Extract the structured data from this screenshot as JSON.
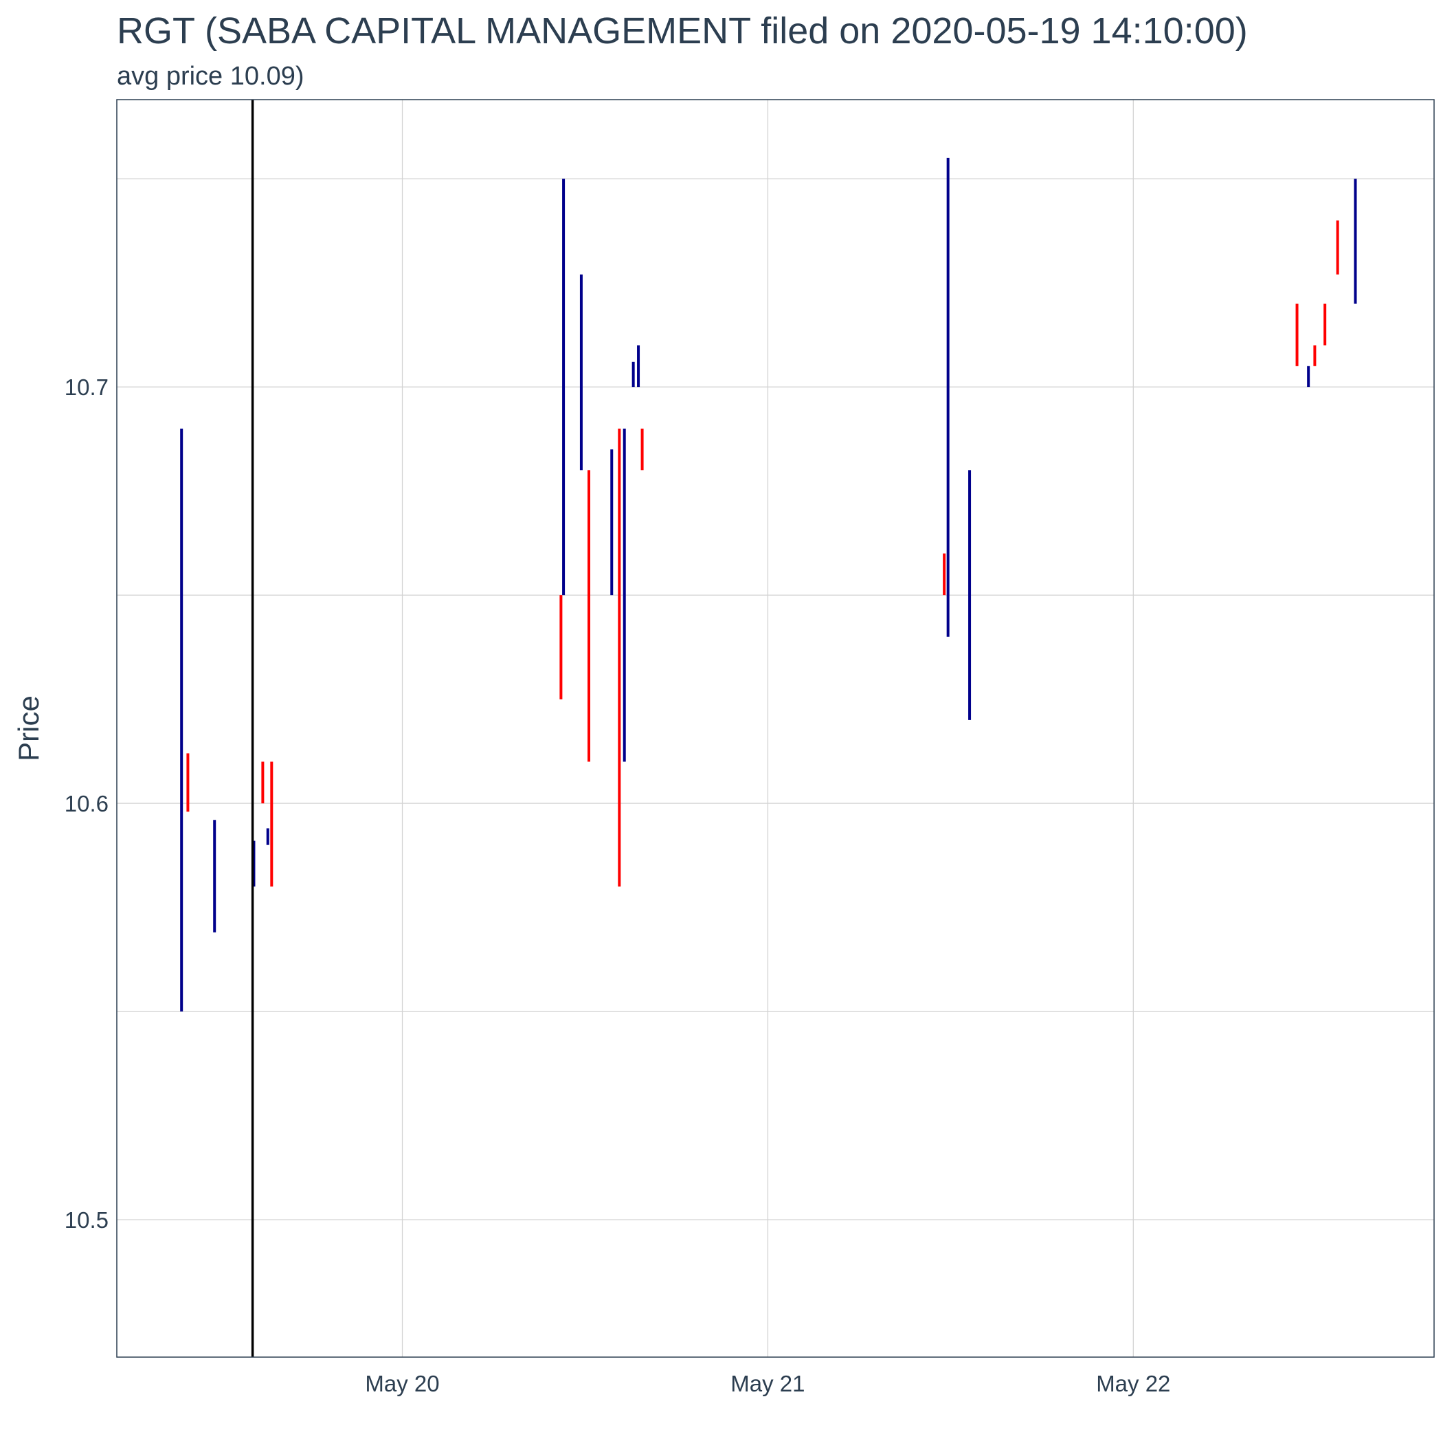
{
  "chart_data": {
    "type": "ohlc",
    "title": "RGT (SABA CAPITAL MANAGEMENT filed on 2020-05-19 14:10:00)",
    "subtitle": "avg price 10.09)",
    "ylabel": "Price",
    "xlabel": "",
    "x_ticks": [
      {
        "label": "May 20",
        "date": "2020-05-20T00:00"
      },
      {
        "label": "May 21",
        "date": "2020-05-21T00:00"
      },
      {
        "label": "May 22",
        "date": "2020-05-22T00:00"
      }
    ],
    "y_ticks": [
      10.5,
      10.6,
      10.7
    ],
    "xlim": [
      "2020-05-19T05:15",
      "2020-05-22T19:45"
    ],
    "ylim": [
      10.467,
      10.769
    ],
    "grid": true,
    "filing_marker": {
      "date": "2020-05-19T14:10",
      "color": "#000000"
    },
    "colors": {
      "up": "#00008b",
      "down": "#ff0000",
      "grid": "#d3d3d3",
      "text": "#2c3e50"
    },
    "bars": [
      {
        "t": "2020-05-19T09:30",
        "low": 10.55,
        "high": 10.69,
        "direction": "up"
      },
      {
        "t": "2020-05-19T09:55",
        "low": 10.598,
        "high": 10.612,
        "direction": "down"
      },
      {
        "t": "2020-05-19T11:40",
        "low": 10.569,
        "high": 10.596,
        "direction": "up"
      },
      {
        "t": "2020-05-19T14:15",
        "low": 10.58,
        "high": 10.591,
        "direction": "up"
      },
      {
        "t": "2020-05-19T14:50",
        "low": 10.6,
        "high": 10.61,
        "direction": "down"
      },
      {
        "t": "2020-05-19T15:10",
        "low": 10.59,
        "high": 10.594,
        "direction": "up"
      },
      {
        "t": "2020-05-19T15:25",
        "low": 10.58,
        "high": 10.61,
        "direction": "down"
      },
      {
        "t": "2020-05-20T10:25",
        "low": 10.625,
        "high": 10.65,
        "direction": "down"
      },
      {
        "t": "2020-05-20T10:35",
        "low": 10.65,
        "high": 10.75,
        "direction": "up"
      },
      {
        "t": "2020-05-20T11:45",
        "low": 10.68,
        "high": 10.727,
        "direction": "up"
      },
      {
        "t": "2020-05-20T12:15",
        "low": 10.61,
        "high": 10.68,
        "direction": "down"
      },
      {
        "t": "2020-05-20T13:45",
        "low": 10.65,
        "high": 10.685,
        "direction": "up"
      },
      {
        "t": "2020-05-20T14:15",
        "low": 10.58,
        "high": 10.69,
        "direction": "down"
      },
      {
        "t": "2020-05-20T14:35",
        "low": 10.61,
        "high": 10.69,
        "direction": "up"
      },
      {
        "t": "2020-05-20T15:10",
        "low": 10.7,
        "high": 10.706,
        "direction": "up"
      },
      {
        "t": "2020-05-20T15:30",
        "low": 10.7,
        "high": 10.71,
        "direction": "up"
      },
      {
        "t": "2020-05-20T15:45",
        "low": 10.68,
        "high": 10.69,
        "direction": "down"
      },
      {
        "t": "2020-05-21T11:35",
        "low": 10.65,
        "high": 10.66,
        "direction": "down"
      },
      {
        "t": "2020-05-21T11:50",
        "low": 10.64,
        "high": 10.755,
        "direction": "up"
      },
      {
        "t": "2020-05-21T13:15",
        "low": 10.62,
        "high": 10.68,
        "direction": "up"
      },
      {
        "t": "2020-05-22T10:45",
        "low": 10.705,
        "high": 10.72,
        "direction": "down"
      },
      {
        "t": "2020-05-22T11:30",
        "low": 10.7,
        "high": 10.705,
        "direction": "up"
      },
      {
        "t": "2020-05-22T11:55",
        "low": 10.705,
        "high": 10.71,
        "direction": "down"
      },
      {
        "t": "2020-05-22T12:35",
        "low": 10.71,
        "high": 10.72,
        "direction": "down"
      },
      {
        "t": "2020-05-22T13:25",
        "low": 10.727,
        "high": 10.74,
        "direction": "down"
      },
      {
        "t": "2020-05-22T14:35",
        "low": 10.72,
        "high": 10.75,
        "direction": "up"
      }
    ]
  }
}
